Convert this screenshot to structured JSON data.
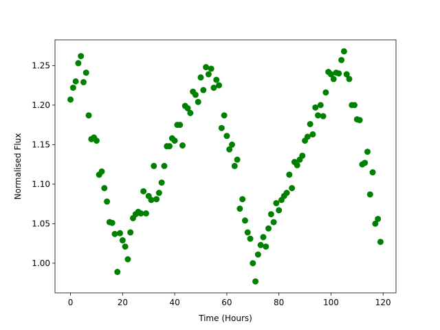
{
  "chart_data": {
    "type": "scatter",
    "xlabel": "Time (Hours)",
    "ylabel": "Normalised Flux",
    "x": [
      0,
      1,
      2,
      3,
      4,
      5,
      6,
      7,
      8,
      9,
      10,
      11,
      12,
      13,
      14,
      15,
      16,
      17,
      18,
      19,
      20,
      21,
      22,
      23,
      24,
      25,
      26,
      27,
      28,
      29,
      30,
      31,
      32,
      33,
      34,
      35,
      36,
      37,
      38,
      39,
      40,
      41,
      42,
      43,
      44,
      45,
      46,
      47,
      48,
      49,
      50,
      51,
      52,
      53,
      54,
      55,
      56,
      57,
      58,
      59,
      60,
      61,
      62,
      63,
      64,
      65,
      66,
      67,
      68,
      69,
      70,
      71,
      72,
      73,
      74,
      75,
      76,
      77,
      78,
      79,
      80,
      81,
      82,
      83,
      84,
      85,
      86,
      87,
      88,
      89,
      90,
      91,
      92,
      93,
      94,
      95,
      96,
      97,
      98,
      99,
      100,
      101,
      102,
      103,
      104,
      105,
      106,
      107,
      108,
      109,
      110,
      111,
      112,
      113,
      114,
      115,
      116,
      117,
      118,
      119
    ],
    "values": [
      1.207,
      1.222,
      1.23,
      1.253,
      1.262,
      1.229,
      1.241,
      1.187,
      1.157,
      1.159,
      1.155,
      1.112,
      1.116,
      1.095,
      1.078,
      1.052,
      1.051,
      1.037,
      0.989,
      1.038,
      1.029,
      1.021,
      1.005,
      1.039,
      1.057,
      1.062,
      1.065,
      1.063,
      1.091,
      1.063,
      1.085,
      1.08,
      1.123,
      1.081,
      1.089,
      1.102,
      1.123,
      1.148,
      1.148,
      1.158,
      1.155,
      1.175,
      1.175,
      1.149,
      1.199,
      1.196,
      1.19,
      1.217,
      1.213,
      1.204,
      1.235,
      1.219,
      1.248,
      1.239,
      1.246,
      1.222,
      1.232,
      1.225,
      1.171,
      1.187,
      1.161,
      1.144,
      1.15,
      1.123,
      1.131,
      1.069,
      1.081,
      1.054,
      1.039,
      1.031,
      1.0,
      0.977,
      1.011,
      1.023,
      1.033,
      1.021,
      1.044,
      1.062,
      1.052,
      1.076,
      1.067,
      1.08,
      1.085,
      1.089,
      1.112,
      1.095,
      1.128,
      1.124,
      1.131,
      1.136,
      1.155,
      1.16,
      1.176,
      1.163,
      1.197,
      1.187,
      1.2,
      1.186,
      1.216,
      1.242,
      1.239,
      1.233,
      1.241,
      1.24,
      1.257,
      1.268,
      1.239,
      1.233,
      1.2,
      1.2,
      1.182,
      1.181,
      1.125,
      1.127,
      1.141,
      1.087,
      1.115,
      1.05,
      1.056,
      1.027
    ],
    "color": "#008000",
    "xlim": [
      -5.95,
      124.95
    ],
    "xticks": [
      0,
      20,
      40,
      60,
      80,
      100,
      120
    ],
    "ylim": [
      0.9625,
      1.2825
    ],
    "yticks": [
      {
        "value": 1.0,
        "label": "1.00"
      },
      1.05,
      {
        "value": 1.1,
        "label": "1.10"
      },
      1.15,
      {
        "value": 1.2,
        "label": "1.20"
      },
      1.25
    ]
  }
}
